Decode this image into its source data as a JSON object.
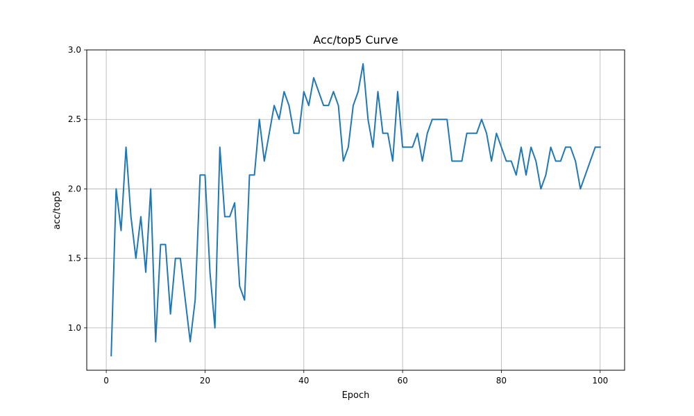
{
  "chart_data": {
    "type": "line",
    "title": "Acc/top5 Curve",
    "xlabel": "Epoch",
    "ylabel": "acc/top5",
    "xlim": [
      -3.95,
      104.95
    ],
    "ylim": [
      0.695,
      3.0
    ],
    "grid": true,
    "x_ticks": [
      0,
      20,
      40,
      60,
      80,
      100
    ],
    "y_ticks": [
      1.0,
      1.5,
      2.0,
      2.5,
      3.0
    ],
    "x_tick_labels": [
      "0",
      "20",
      "40",
      "60",
      "80",
      "100"
    ],
    "y_tick_labels": [
      "1.0",
      "1.5",
      "2.0",
      "2.5",
      "3.0"
    ],
    "line_color": "#1f77b4",
    "series": [
      {
        "x": [
          1,
          2,
          3,
          4,
          5,
          6,
          7,
          8,
          9,
          10,
          11,
          12,
          13,
          14,
          15,
          16,
          17,
          18,
          19,
          20,
          21,
          22,
          23,
          24,
          25,
          26,
          27,
          28,
          29,
          30,
          31,
          32,
          33,
          34,
          35,
          36,
          37,
          38,
          39,
          40,
          41,
          42,
          43,
          44,
          45,
          46,
          47,
          48,
          49,
          50,
          51,
          52,
          53,
          54,
          55,
          56,
          57,
          58,
          59,
          60,
          61,
          62,
          63,
          64,
          65,
          66,
          67,
          68,
          69,
          70,
          71,
          72,
          73,
          74,
          75,
          76,
          77,
          78,
          79,
          80,
          81,
          82,
          83,
          84,
          85,
          86,
          87,
          88,
          89,
          90,
          91,
          92,
          93,
          94,
          95,
          96,
          97,
          98,
          99,
          100
        ],
        "values": [
          0.8,
          2.0,
          1.7,
          2.3,
          1.8,
          1.5,
          1.8,
          1.4,
          2.0,
          0.9,
          1.6,
          1.6,
          1.1,
          1.5,
          1.5,
          1.2,
          0.9,
          1.2,
          2.1,
          2.1,
          1.4,
          1.0,
          2.3,
          1.8,
          1.8,
          1.9,
          1.3,
          1.2,
          2.1,
          2.1,
          2.5,
          2.2,
          2.4,
          2.6,
          2.5,
          2.7,
          2.6,
          2.4,
          2.4,
          2.7,
          2.6,
          2.8,
          2.7,
          2.6,
          2.6,
          2.7,
          2.6,
          2.2,
          2.3,
          2.6,
          2.7,
          2.9,
          2.5,
          2.3,
          2.7,
          2.4,
          2.4,
          2.2,
          2.7,
          2.3,
          2.3,
          2.3,
          2.4,
          2.2,
          2.4,
          2.5,
          2.5,
          2.5,
          2.5,
          2.2,
          2.2,
          2.2,
          2.4,
          2.4,
          2.4,
          2.5,
          2.4,
          2.2,
          2.4,
          2.3,
          2.2,
          2.2,
          2.1,
          2.3,
          2.1,
          2.3,
          2.2,
          2.0,
          2.1,
          2.3,
          2.2,
          2.2,
          2.3,
          2.3,
          2.2,
          2.0,
          2.1,
          2.2,
          2.3,
          2.3
        ]
      }
    ]
  }
}
